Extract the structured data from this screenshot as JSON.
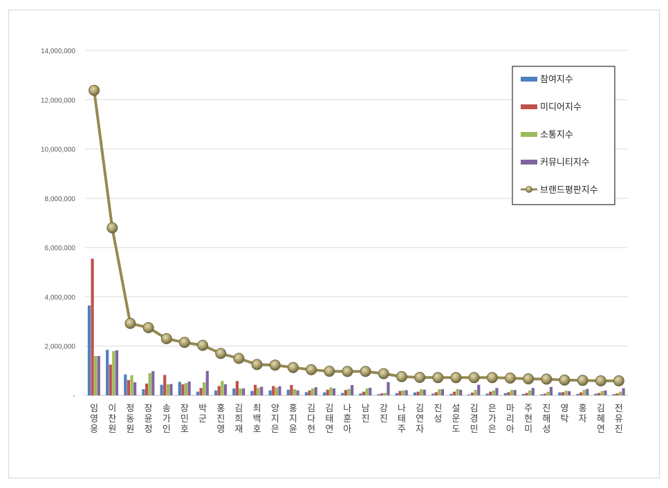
{
  "chart_data": {
    "type": "bar",
    "title": "",
    "xlabel": "",
    "ylabel": "",
    "ylim": [
      0,
      14000000
    ],
    "yticks": [
      "-",
      "2,000,000",
      "4,000,000",
      "6,000,000",
      "8,000,000",
      "10,000,000",
      "12,000,000",
      "14,000,000"
    ],
    "grid": true,
    "legend_position": "top-right",
    "categories": [
      "임영웅",
      "이찬원",
      "정동원",
      "장윤정",
      "송가인",
      "장민호",
      "박군",
      "홍진영",
      "김희재",
      "최백호",
      "양지은",
      "홍지윤",
      "김다현",
      "김태연",
      "나훈아",
      "남진",
      "강진",
      "나태주",
      "김연자",
      "진성",
      "설운도",
      "김경민",
      "은가은",
      "마리아",
      "주현미",
      "진해성",
      "영탁",
      "홍자",
      "김혜연",
      "전유진"
    ],
    "series": [
      {
        "name": "참여지수",
        "type": "bar",
        "color": "#4f81bd",
        "values": [
          3650000,
          1850000,
          850000,
          250000,
          430000,
          550000,
          150000,
          200000,
          280000,
          180000,
          200000,
          230000,
          130000,
          120000,
          100000,
          80000,
          50000,
          90000,
          120000,
          70000,
          60000,
          40000,
          70000,
          90000,
          60000,
          40000,
          120000,
          60000,
          70000,
          50000
        ]
      },
      {
        "name": "미디어지수",
        "type": "bar",
        "color": "#c0504d",
        "values": [
          5550000,
          1250000,
          620000,
          480000,
          830000,
          450000,
          300000,
          380000,
          580000,
          430000,
          380000,
          420000,
          200000,
          230000,
          220000,
          150000,
          80000,
          180000,
          150000,
          130000,
          150000,
          110000,
          150000,
          130000,
          100000,
          70000,
          130000,
          120000,
          100000,
          80000
        ]
      },
      {
        "name": "소통지수",
        "type": "bar",
        "color": "#9bbb59",
        "values": [
          1600000,
          1800000,
          820000,
          900000,
          450000,
          500000,
          530000,
          580000,
          280000,
          300000,
          320000,
          250000,
          280000,
          320000,
          260000,
          280000,
          100000,
          200000,
          250000,
          250000,
          260000,
          220000,
          200000,
          220000,
          200000,
          150000,
          190000,
          220000,
          180000,
          150000
        ]
      },
      {
        "name": "커뮤니티지수",
        "type": "bar",
        "color": "#8064a2",
        "values": [
          1600000,
          1830000,
          530000,
          980000,
          460000,
          560000,
          990000,
          450000,
          280000,
          350000,
          370000,
          200000,
          330000,
          280000,
          420000,
          310000,
          540000,
          210000,
          230000,
          250000,
          230000,
          430000,
          300000,
          220000,
          300000,
          340000,
          170000,
          260000,
          200000,
          290000
        ]
      },
      {
        "name": "브랜드평판지수",
        "type": "line",
        "color": "#948a54",
        "values": [
          12380000,
          6800000,
          2920000,
          2750000,
          2300000,
          2150000,
          2030000,
          1700000,
          1500000,
          1250000,
          1230000,
          1130000,
          1040000,
          980000,
          970000,
          970000,
          880000,
          760000,
          730000,
          720000,
          720000,
          720000,
          720000,
          700000,
          670000,
          660000,
          620000,
          610000,
          590000,
          590000
        ]
      }
    ]
  }
}
